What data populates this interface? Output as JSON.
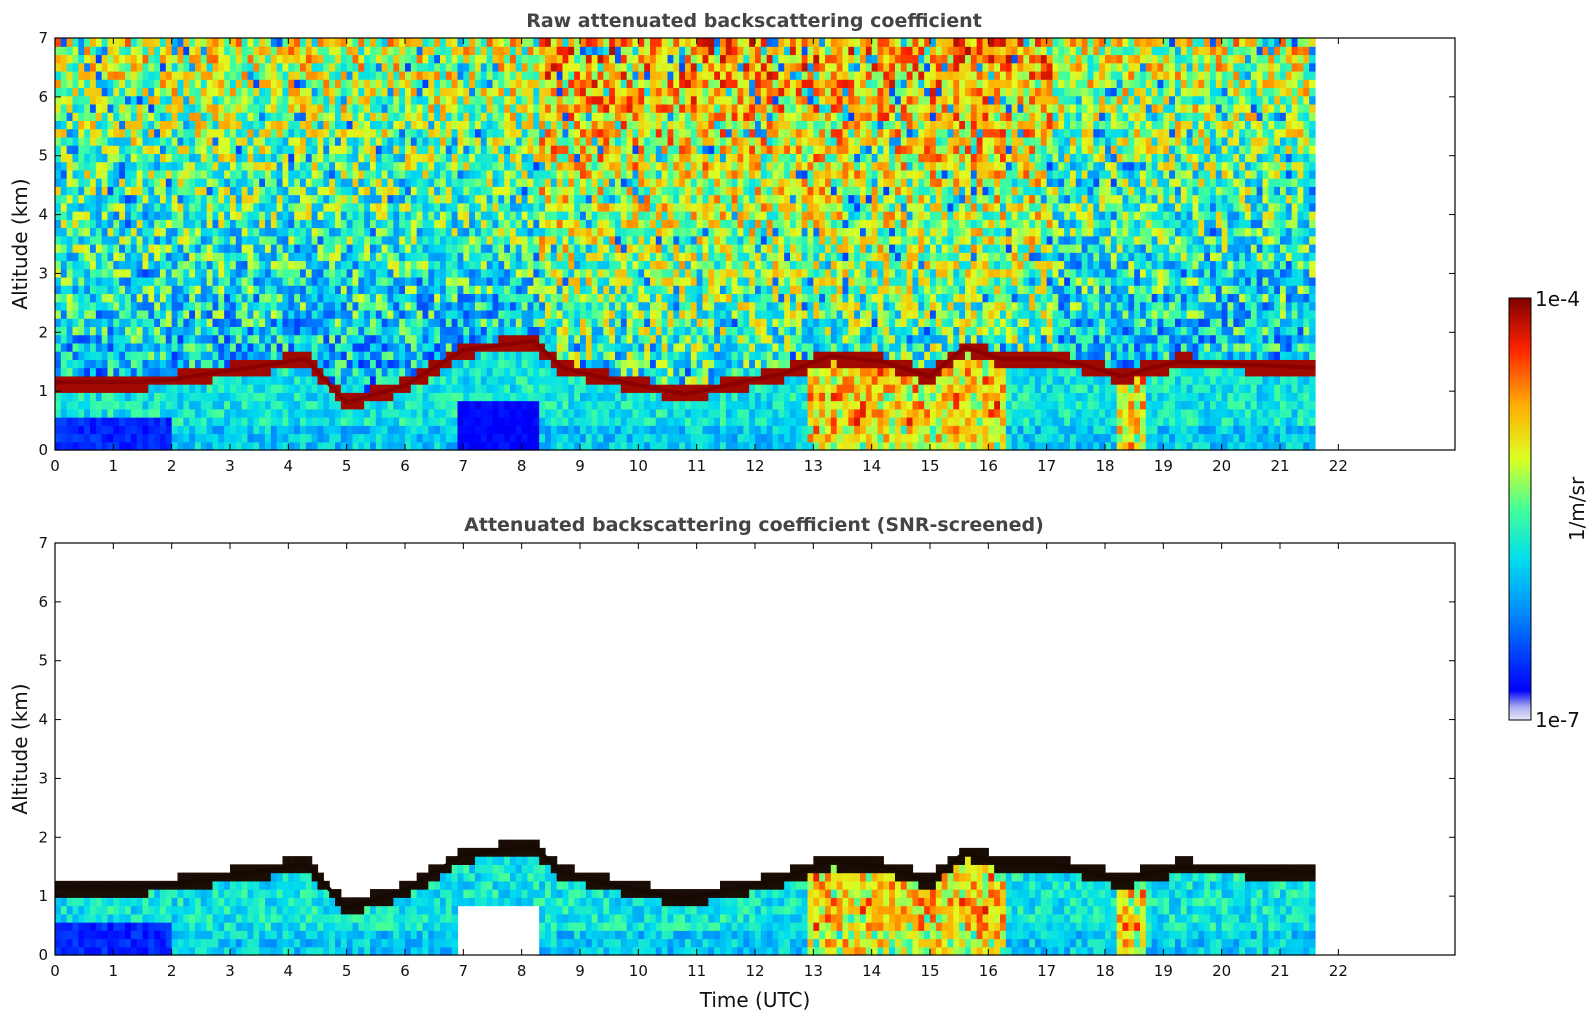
{
  "chart_data": [
    {
      "type": "heatmap",
      "title": "Raw attenuated backscattering coefficient",
      "xlabel": "",
      "ylabel": "Altitude (km)",
      "xlim": [
        0,
        24
      ],
      "ylim": [
        0,
        7
      ],
      "x_ticks": [
        "0",
        "1",
        "2",
        "3",
        "4",
        "5",
        "6",
        "7",
        "8",
        "9",
        "10",
        "11",
        "12",
        "13",
        "14",
        "15",
        "16",
        "17",
        "18",
        "19",
        "20",
        "21",
        "22"
      ],
      "y_ticks": [
        "0",
        "1",
        "2",
        "3",
        "4",
        "5",
        "6",
        "7"
      ],
      "data_end_time": 21.6,
      "screened": false,
      "cloud_layer": {
        "time": [
          0,
          1.4,
          2,
          3,
          4,
          4.3,
          5,
          6,
          7,
          8.2,
          8.7,
          9.5,
          10.8,
          11.5,
          12.5,
          13.3,
          14.2,
          15,
          15.6,
          16.2,
          17,
          17.6,
          18.3,
          18.8,
          19.3,
          21.6
        ],
        "altitude_km": [
          1.15,
          1.15,
          1.2,
          1.35,
          1.5,
          1.55,
          0.8,
          1.1,
          1.7,
          1.85,
          1.4,
          1.2,
          0.95,
          1.1,
          1.3,
          1.6,
          1.5,
          1.25,
          1.75,
          1.55,
          1.55,
          1.45,
          1.25,
          1.4,
          1.5,
          1.4
        ]
      }
    },
    {
      "type": "heatmap",
      "title": "Attenuated backscattering coefficient (SNR-screened)",
      "xlabel": "Time (UTC)",
      "ylabel": "Altitude (km)",
      "xlim": [
        0,
        24
      ],
      "ylim": [
        0,
        7
      ],
      "x_ticks": [
        "0",
        "1",
        "2",
        "3",
        "4",
        "5",
        "6",
        "7",
        "8",
        "9",
        "10",
        "11",
        "12",
        "13",
        "14",
        "15",
        "16",
        "17",
        "18",
        "19",
        "20",
        "21",
        "22"
      ],
      "y_ticks": [
        "0",
        "1",
        "2",
        "3",
        "4",
        "5",
        "6",
        "7"
      ],
      "data_end_time": 21.6,
      "screened": true,
      "cloud_layer": {
        "time": [
          0,
          1.4,
          2,
          3,
          4,
          4.3,
          5,
          6,
          7,
          8.2,
          8.7,
          9.5,
          10.8,
          11.5,
          12.5,
          13.3,
          14.2,
          15,
          15.6,
          16.2,
          17,
          17.6,
          18.3,
          18.8,
          19.3,
          21.6
        ],
        "altitude_km": [
          1.15,
          1.15,
          1.2,
          1.35,
          1.5,
          1.55,
          0.8,
          1.1,
          1.7,
          1.85,
          1.4,
          1.2,
          0.95,
          1.1,
          1.3,
          1.6,
          1.5,
          1.25,
          1.75,
          1.55,
          1.55,
          1.45,
          1.25,
          1.4,
          1.5,
          1.4
        ]
      }
    }
  ],
  "colorbar": {
    "label": "1/m/sr",
    "max_label": "1e-4",
    "min_label": "1e-7",
    "colormap": "jet",
    "colors": [
      "#e6e6f7",
      "#0000ff",
      "#00aaff",
      "#33ffcc",
      "#ccff33",
      "#ffaa00",
      "#ff2200",
      "#800000"
    ]
  }
}
